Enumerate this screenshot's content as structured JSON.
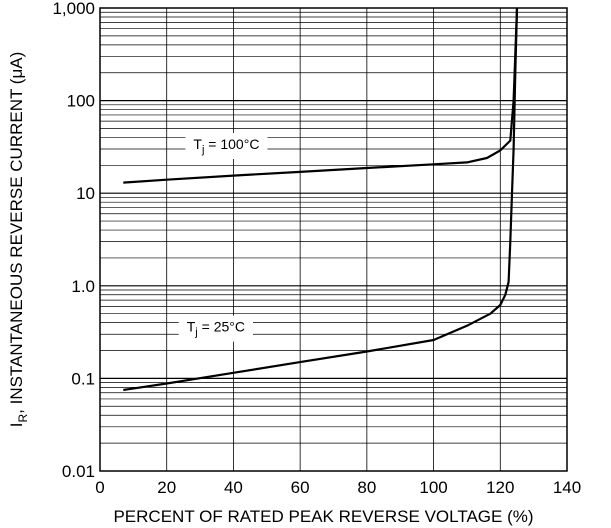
{
  "chart_data": {
    "type": "line",
    "title": "",
    "xlabel": "PERCENT OF RATED PEAK REVERSE VOLTAGE (%)",
    "ylabel": "INSTANTANEOUS REVERSE CURRENT (μA)",
    "ylabel_symbol": "I",
    "ylabel_subscript": "R",
    "ylabel_after_symbol": ", ",
    "xlim": [
      0,
      140
    ],
    "ylim": [
      0.01,
      1000
    ],
    "yscale": "log",
    "grid": true,
    "x_ticks": [
      "0",
      "20",
      "40",
      "60",
      "80",
      "100",
      "120",
      "140"
    ],
    "y_ticks": [
      "0.01",
      "0.1",
      "1.0",
      "10",
      "100",
      "1,000"
    ],
    "series": [
      {
        "label_main": "T",
        "label_sub": "j",
        "label_rest": " = 100°C",
        "x": [
          7,
          20,
          40,
          60,
          80,
          100,
          110,
          116,
          120,
          123,
          124,
          125
        ],
        "y": [
          13,
          14,
          15.5,
          17,
          18.7,
          20.5,
          21.5,
          24,
          29,
          37,
          100,
          1000
        ]
      },
      {
        "label_main": "T",
        "label_sub": "j",
        "label_rest": " = 25°C",
        "x": [
          7,
          20,
          40,
          60,
          80,
          100,
          110,
          117,
          120,
          121.5,
          122.5,
          123,
          123.5,
          124,
          124.5,
          125
        ],
        "y": [
          0.075,
          0.088,
          0.115,
          0.15,
          0.195,
          0.26,
          0.37,
          0.5,
          0.62,
          0.8,
          1.1,
          3,
          10,
          30,
          200,
          1000
        ]
      }
    ]
  }
}
